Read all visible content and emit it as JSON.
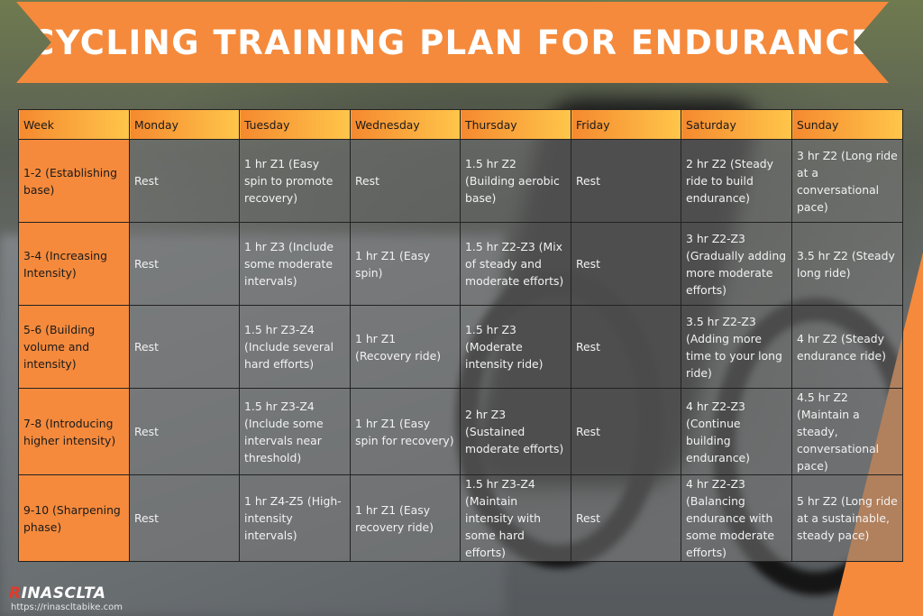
{
  "title": "CYCLING TRAINING PLAN FOR ENDURANCE",
  "colors": {
    "accent_orange": "#f58a3c",
    "header_gradient_end": "#ffc64a",
    "cell_overlay": "#787878",
    "logo_red": "#e03a2a"
  },
  "table": {
    "headers": [
      "Week",
      "Monday",
      "Tuesday",
      "Wednesday",
      "Thursday",
      "Friday",
      "Saturday",
      "Sunday"
    ],
    "rows": [
      [
        "1-2 (Establishing base)",
        "Rest",
        "1 hr Z1 (Easy spin to promote recovery)",
        "Rest",
        "1.5 hr Z2 (Building aerobic base)",
        "Rest",
        "2 hr Z2 (Steady ride to build endurance)",
        "3 hr Z2 (Long ride at a conversational pace)"
      ],
      [
        "3-4 (Increasing Intensity)",
        "Rest",
        "1 hr Z3 (Include some moderate intervals)",
        "1 hr Z1 (Easy spin)",
        "1.5 hr Z2-Z3 (Mix of steady and moderate efforts)",
        "Rest",
        "3 hr Z2-Z3 (Gradually adding more moderate efforts)",
        "3.5 hr Z2 (Steady long ride)"
      ],
      [
        "5-6 (Building volume and intensity)",
        "Rest",
        "1.5 hr Z3-Z4 (Include several hard efforts)",
        "1 hr Z1 (Recovery ride)",
        "1.5 hr Z3 (Moderate intensity ride)",
        "Rest",
        "3.5 hr Z2-Z3 (Adding more time to your long ride)",
        "4 hr Z2 (Steady endurance ride)"
      ],
      [
        "7-8 (Introducing higher intensity)",
        "Rest",
        "1.5 hr Z3-Z4 (Include some intervals near threshold)",
        "1 hr Z1 (Easy spin for recovery)",
        "2 hr Z3 (Sustained moderate efforts)",
        "Rest",
        "4 hr Z2-Z3 (Continue building endurance)",
        "4.5 hr Z2 (Maintain a steady, conversational pace)"
      ],
      [
        "9-10 (Sharpening phase)",
        "Rest",
        "1 hr Z4-Z5 (High-intensity intervals)",
        "1 hr Z1 (Easy recovery ride)",
        "1.5 hr Z3-Z4 (Maintain intensity with some hard efforts)",
        "Rest",
        "4 hr Z2-Z3 (Balancing endurance with some moderate efforts)",
        "5 hr Z2 (Long ride at a sustainable, steady pace)"
      ]
    ]
  },
  "logo": {
    "text": "RINASCLTA",
    "url": "https://rinascltabike.com"
  }
}
